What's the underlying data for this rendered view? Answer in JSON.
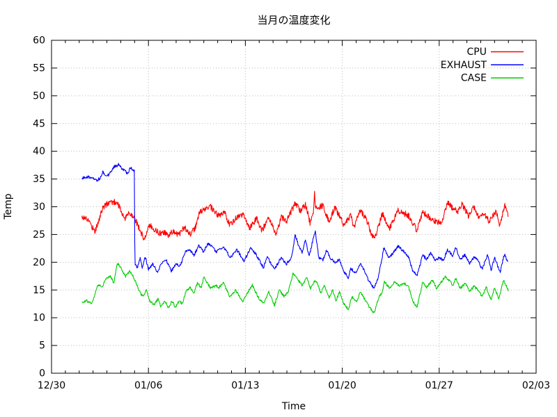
{
  "page": {
    "background": "#ffffff"
  },
  "chart_data": {
    "type": "line",
    "title": "当月の温度変化",
    "xlabel": "Time",
    "ylabel": "Temp",
    "x_axis": {
      "range_days": [
        0,
        35
      ],
      "major_tick_days": [
        0,
        7,
        14,
        21,
        28,
        35
      ],
      "tick_labels": [
        "12/30",
        "01/06",
        "01/13",
        "01/20",
        "01/27",
        "02/03"
      ],
      "minor_tick_interval_days": 1
    },
    "y_axis": {
      "min": 0,
      "max": 60,
      "tick_interval": 5,
      "tick_labels": [
        "0",
        "5",
        "10",
        "15",
        "20",
        "25",
        "30",
        "35",
        "40",
        "45",
        "50",
        "55",
        "60"
      ]
    },
    "grid": {
      "visible": true,
      "style": "dotted",
      "color": "#b9b9b9"
    },
    "axis_color": "#000000",
    "legend": {
      "position": "top-right",
      "entries": [
        "CPU",
        "EXHAUST",
        "CASE"
      ]
    },
    "series": [
      {
        "name": "CPU",
        "color": "#ff0000",
        "noise": 0.55,
        "points": [
          [
            2.2,
            28.2
          ],
          [
            2.45,
            28.0
          ],
          [
            2.7,
            27.5
          ],
          [
            2.95,
            26.3
          ],
          [
            3.15,
            25.6
          ],
          [
            3.45,
            27.8
          ],
          [
            3.7,
            29.8
          ],
          [
            4.1,
            30.7
          ],
          [
            4.45,
            30.9
          ],
          [
            4.75,
            30.8
          ],
          [
            5.0,
            29.4
          ],
          [
            5.3,
            27.7
          ],
          [
            5.6,
            29.0
          ],
          [
            5.95,
            28.3
          ],
          [
            6.3,
            26.3
          ],
          [
            6.65,
            24.2
          ],
          [
            7.1,
            26.7
          ],
          [
            7.45,
            25.9
          ],
          [
            7.8,
            25.2
          ],
          [
            8.1,
            25.4
          ],
          [
            8.4,
            24.9
          ],
          [
            8.8,
            25.6
          ],
          [
            9.2,
            25.0
          ],
          [
            9.6,
            26.3
          ],
          [
            10.0,
            25.1
          ],
          [
            10.35,
            26.0
          ],
          [
            10.7,
            29.0
          ],
          [
            11.0,
            29.4
          ],
          [
            11.45,
            30.1
          ],
          [
            11.8,
            28.9
          ],
          [
            12.1,
            28.3
          ],
          [
            12.5,
            28.9
          ],
          [
            12.9,
            26.7
          ],
          [
            13.4,
            28.2
          ],
          [
            13.9,
            28.5
          ],
          [
            14.3,
            26.0
          ],
          [
            14.8,
            27.9
          ],
          [
            15.2,
            25.7
          ],
          [
            15.7,
            27.9
          ],
          [
            16.2,
            25.0
          ],
          [
            16.6,
            28.1
          ],
          [
            17.0,
            27.4
          ],
          [
            17.6,
            30.7
          ],
          [
            17.95,
            29.3
          ],
          [
            18.35,
            30.3
          ],
          [
            18.7,
            26.9
          ],
          [
            18.95,
            29.5
          ],
          [
            19.0,
            33.1
          ],
          [
            19.05,
            29.7
          ],
          [
            19.3,
            29.8
          ],
          [
            19.6,
            30.3
          ],
          [
            20.05,
            27.2
          ],
          [
            20.45,
            29.9
          ],
          [
            20.8,
            28.4
          ],
          [
            21.1,
            26.8
          ],
          [
            21.6,
            28.4
          ],
          [
            21.85,
            26.3
          ],
          [
            22.3,
            29.3
          ],
          [
            22.8,
            27.4
          ],
          [
            23.1,
            25.1
          ],
          [
            23.35,
            24.4
          ],
          [
            23.9,
            28.8
          ],
          [
            24.4,
            26.0
          ],
          [
            25.0,
            29.3
          ],
          [
            25.5,
            28.8
          ],
          [
            25.8,
            28.4
          ],
          [
            26.4,
            25.7
          ],
          [
            26.8,
            29.1
          ],
          [
            27.3,
            28.1
          ],
          [
            27.7,
            27.4
          ],
          [
            28.2,
            27.2
          ],
          [
            28.6,
            30.8
          ],
          [
            29.0,
            29.7
          ],
          [
            29.4,
            29.1
          ],
          [
            29.65,
            30.6
          ],
          [
            30.1,
            28.4
          ],
          [
            30.5,
            30.1
          ],
          [
            30.85,
            28.1
          ],
          [
            31.2,
            28.8
          ],
          [
            31.6,
            27.4
          ],
          [
            32.1,
            29.3
          ],
          [
            32.35,
            26.8
          ],
          [
            32.75,
            30.2
          ],
          [
            33.0,
            28.2
          ]
        ]
      },
      {
        "name": "EXHAUST",
        "color": "#0000ff",
        "noise": 0.26,
        "points": [
          [
            2.2,
            35.2
          ],
          [
            2.5,
            35.4
          ],
          [
            2.9,
            35.3
          ],
          [
            3.2,
            34.7
          ],
          [
            3.5,
            35.1
          ],
          [
            3.7,
            36.3
          ],
          [
            3.9,
            35.8
          ],
          [
            4.1,
            35.7
          ],
          [
            4.5,
            37.2
          ],
          [
            4.85,
            37.6
          ],
          [
            5.2,
            36.6
          ],
          [
            5.5,
            36.0
          ],
          [
            5.7,
            37.2
          ],
          [
            5.98,
            36.4
          ],
          [
            6.02,
            19.5
          ],
          [
            6.2,
            19.0
          ],
          [
            6.4,
            20.9
          ],
          [
            6.55,
            18.8
          ],
          [
            6.75,
            21.2
          ],
          [
            7.0,
            18.7
          ],
          [
            7.3,
            19.7
          ],
          [
            7.65,
            18.2
          ],
          [
            8.0,
            20.0
          ],
          [
            8.3,
            20.3
          ],
          [
            8.65,
            18.4
          ],
          [
            9.0,
            19.7
          ],
          [
            9.3,
            19.3
          ],
          [
            9.65,
            21.8
          ],
          [
            10.0,
            22.2
          ],
          [
            10.3,
            21.3
          ],
          [
            10.65,
            23.0
          ],
          [
            11.0,
            21.8
          ],
          [
            11.3,
            23.4
          ],
          [
            11.6,
            23.0
          ],
          [
            11.9,
            21.8
          ],
          [
            12.4,
            22.8
          ],
          [
            12.9,
            20.9
          ],
          [
            13.4,
            22.2
          ],
          [
            13.9,
            20.3
          ],
          [
            14.4,
            22.6
          ],
          [
            14.8,
            21.3
          ],
          [
            15.3,
            19.0
          ],
          [
            15.6,
            20.9
          ],
          [
            16.1,
            18.7
          ],
          [
            16.6,
            20.9
          ],
          [
            16.95,
            19.7
          ],
          [
            17.35,
            20.9
          ],
          [
            17.6,
            24.9
          ],
          [
            17.85,
            23.0
          ],
          [
            18.1,
            21.8
          ],
          [
            18.35,
            24.1
          ],
          [
            18.6,
            20.9
          ],
          [
            18.85,
            23.7
          ],
          [
            19.05,
            25.7
          ],
          [
            19.3,
            20.9
          ],
          [
            19.6,
            20.3
          ],
          [
            19.85,
            22.2
          ],
          [
            20.1,
            20.9
          ],
          [
            20.45,
            19.9
          ],
          [
            20.8,
            20.5
          ],
          [
            21.1,
            18.4
          ],
          [
            21.45,
            17.2
          ],
          [
            21.6,
            19.0
          ],
          [
            21.95,
            18.0
          ],
          [
            22.3,
            19.7
          ],
          [
            22.55,
            18.7
          ],
          [
            22.8,
            17.2
          ],
          [
            23.1,
            15.9
          ],
          [
            23.3,
            15.3
          ],
          [
            23.6,
            17.2
          ],
          [
            23.85,
            20.5
          ],
          [
            24.0,
            22.6
          ],
          [
            24.4,
            20.7
          ],
          [
            24.8,
            22.2
          ],
          [
            25.05,
            22.9
          ],
          [
            25.5,
            21.8
          ],
          [
            25.8,
            20.9
          ],
          [
            26.1,
            18.4
          ],
          [
            26.4,
            17.5
          ],
          [
            26.8,
            21.3
          ],
          [
            27.1,
            20.5
          ],
          [
            27.4,
            21.8
          ],
          [
            27.7,
            20.3
          ],
          [
            28.0,
            20.9
          ],
          [
            28.3,
            20.3
          ],
          [
            28.6,
            22.2
          ],
          [
            29.0,
            21.1
          ],
          [
            29.2,
            22.8
          ],
          [
            29.5,
            20.5
          ],
          [
            29.85,
            21.3
          ],
          [
            30.2,
            19.7
          ],
          [
            30.5,
            20.9
          ],
          [
            30.8,
            20.3
          ],
          [
            31.1,
            18.7
          ],
          [
            31.3,
            20.0
          ],
          [
            31.5,
            21.3
          ],
          [
            31.75,
            18.4
          ],
          [
            32.0,
            20.9
          ],
          [
            32.4,
            18.2
          ],
          [
            32.7,
            21.4
          ],
          [
            33.0,
            20.0
          ]
        ]
      },
      {
        "name": "CASE",
        "color": "#00cc00",
        "noise": 0.22,
        "points": [
          [
            2.2,
            12.8
          ],
          [
            2.5,
            13.1
          ],
          [
            2.9,
            12.5
          ],
          [
            3.35,
            15.9
          ],
          [
            3.65,
            15.5
          ],
          [
            3.9,
            16.9
          ],
          [
            4.25,
            17.5
          ],
          [
            4.5,
            16.3
          ],
          [
            4.75,
            19.9
          ],
          [
            5.0,
            19.0
          ],
          [
            5.35,
            17.5
          ],
          [
            5.65,
            18.4
          ],
          [
            5.9,
            17.5
          ],
          [
            6.1,
            16.3
          ],
          [
            6.35,
            14.7
          ],
          [
            6.6,
            13.8
          ],
          [
            6.85,
            15.0
          ],
          [
            7.1,
            13.0
          ],
          [
            7.4,
            12.4
          ],
          [
            7.7,
            13.4
          ],
          [
            7.9,
            11.9
          ],
          [
            8.2,
            13.0
          ],
          [
            8.45,
            11.8
          ],
          [
            8.7,
            13.0
          ],
          [
            8.95,
            11.9
          ],
          [
            9.2,
            13.0
          ],
          [
            9.45,
            12.5
          ],
          [
            9.7,
            14.7
          ],
          [
            10.0,
            15.5
          ],
          [
            10.3,
            14.4
          ],
          [
            10.55,
            16.3
          ],
          [
            10.8,
            15.3
          ],
          [
            11.0,
            17.3
          ],
          [
            11.2,
            16.5
          ],
          [
            11.5,
            15.3
          ],
          [
            11.9,
            15.9
          ],
          [
            12.05,
            15.3
          ],
          [
            12.4,
            16.3
          ],
          [
            12.9,
            13.7
          ],
          [
            13.3,
            15.0
          ],
          [
            13.8,
            12.8
          ],
          [
            14.2,
            14.7
          ],
          [
            14.5,
            15.9
          ],
          [
            14.9,
            13.8
          ],
          [
            15.3,
            12.5
          ],
          [
            15.7,
            14.7
          ],
          [
            16.1,
            12.2
          ],
          [
            16.45,
            15.0
          ],
          [
            16.8,
            13.8
          ],
          [
            17.1,
            14.7
          ],
          [
            17.45,
            18.0
          ],
          [
            17.8,
            16.8
          ],
          [
            18.1,
            15.9
          ],
          [
            18.45,
            17.2
          ],
          [
            18.7,
            15.3
          ],
          [
            19.05,
            16.8
          ],
          [
            19.2,
            16.3
          ],
          [
            19.45,
            14.3
          ],
          [
            19.7,
            15.9
          ],
          [
            20.05,
            13.7
          ],
          [
            20.3,
            15.0
          ],
          [
            20.55,
            13.0
          ],
          [
            20.8,
            14.7
          ],
          [
            21.1,
            12.5
          ],
          [
            21.45,
            11.5
          ],
          [
            21.7,
            13.8
          ],
          [
            22.05,
            12.8
          ],
          [
            22.3,
            14.7
          ],
          [
            22.6,
            13.4
          ],
          [
            22.95,
            11.9
          ],
          [
            23.3,
            10.8
          ],
          [
            23.6,
            13.4
          ],
          [
            23.9,
            14.7
          ],
          [
            24.05,
            16.6
          ],
          [
            24.4,
            15.3
          ],
          [
            24.8,
            16.5
          ],
          [
            25.1,
            15.7
          ],
          [
            25.5,
            16.2
          ],
          [
            25.8,
            15.5
          ],
          [
            26.1,
            13.0
          ],
          [
            26.4,
            11.9
          ],
          [
            26.8,
            16.3
          ],
          [
            27.1,
            15.5
          ],
          [
            27.5,
            16.8
          ],
          [
            27.8,
            15.3
          ],
          [
            28.1,
            16.3
          ],
          [
            28.45,
            17.4
          ],
          [
            29.0,
            15.9
          ],
          [
            29.2,
            17.2
          ],
          [
            29.5,
            15.3
          ],
          [
            29.9,
            16.2
          ],
          [
            30.2,
            14.7
          ],
          [
            30.5,
            15.7
          ],
          [
            30.8,
            15.0
          ],
          [
            31.1,
            13.8
          ],
          [
            31.4,
            15.5
          ],
          [
            31.75,
            13.2
          ],
          [
            32.0,
            15.5
          ],
          [
            32.3,
            13.4
          ],
          [
            32.65,
            16.8
          ],
          [
            33.0,
            14.9
          ]
        ]
      }
    ]
  }
}
